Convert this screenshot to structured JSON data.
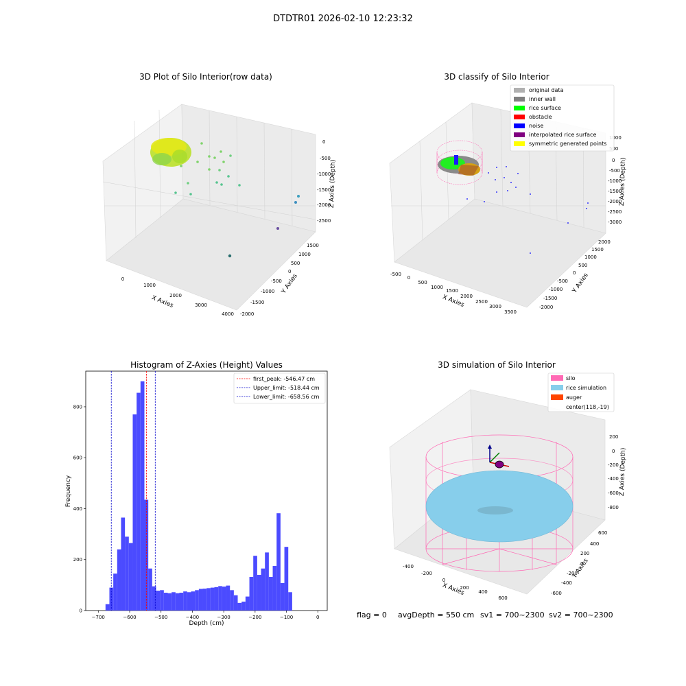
{
  "page": {
    "suptitle": "DTDTR01 2026-02-10 12:23:32"
  },
  "colors": {
    "pane_gray": "#f2f2f2",
    "pane_gray_dark": "#e6e6e6",
    "hist_bar": "#4b4bff",
    "first_peak_line": "#ff0000",
    "limit_line": "#0000cc",
    "silo": "#ff69b4",
    "rice_sim": "#87ceeb",
    "auger": "#ff4500"
  },
  "panel1": {
    "title": "3D Plot of Silo Interior(row data)",
    "x_label": "X Axies",
    "y_label": "Y Axies",
    "z_label": "Z Axies (Depth)",
    "x_ticks": [
      "0",
      "1000",
      "2000",
      "3000",
      "4000"
    ],
    "y_ticks": [
      "-2000",
      "-1500",
      "-1000",
      "-500",
      "0",
      "500",
      "1000",
      "1500"
    ],
    "z_ticks": [
      "0",
      "-500",
      "-1000",
      "-1500",
      "-2000",
      "-2500"
    ]
  },
  "panel2": {
    "title": "3D classify of Silo Interior",
    "x_label": "X Axies",
    "y_label": "Y Axies",
    "z_label": "Z Axies (Depth)",
    "x_ticks": [
      "-500",
      "0",
      "500",
      "1000",
      "1500",
      "2000",
      "2500",
      "3000",
      "3500"
    ],
    "y_ticks": [
      "-2000",
      "-1500",
      "-1000",
      "-500",
      "0",
      "500",
      "1000",
      "1500",
      "2000"
    ],
    "z_ticks": [
      "1000",
      "500",
      "0",
      "-500",
      "-1000",
      "-1500",
      "-2000",
      "-2500",
      "-3000"
    ],
    "legend": [
      {
        "label": "original data",
        "color": "#b0b0b0"
      },
      {
        "label": "inner wall",
        "color": "#808080"
      },
      {
        "label": "rice surface",
        "color": "#00ff00"
      },
      {
        "label": "obstacle",
        "color": "#ff0000"
      },
      {
        "label": "noise",
        "color": "#0000ff"
      },
      {
        "label": "interpolated rice surface",
        "color": "#800080"
      },
      {
        "label": "symmetric generated points",
        "color": "#ffff00"
      }
    ]
  },
  "panel3": {
    "title": "Histogram of Z-Axies (Height) Values",
    "legend": [
      {
        "label": "first_peak: -546.47 cm",
        "color": "#ff0000"
      },
      {
        "label": "Upper_limit: -518.44 cm",
        "color": "#0000cc"
      },
      {
        "label": "Lower_limit: -658.56 cm",
        "color": "#0000cc"
      }
    ]
  },
  "panel4": {
    "title": "3D simulation of Silo Interior",
    "x_label": "X Axies",
    "y_label": "Y Axies",
    "z_label": "Z Axies (Depth)",
    "x_ticks": [
      "-400",
      "-200",
      "0",
      "200",
      "400",
      "600"
    ],
    "y_ticks": [
      "-600",
      "-400",
      "-200",
      "0",
      "200",
      "400",
      "600"
    ],
    "z_ticks": [
      "200",
      "0",
      "-200",
      "-400",
      "-600",
      "-800"
    ],
    "legend": [
      {
        "label": "silo",
        "color": "#ff69b4",
        "swatch": true
      },
      {
        "label": "rice simulation",
        "color": "#87ceeb",
        "swatch": true
      },
      {
        "label": "auger",
        "color": "#ff4500",
        "swatch": true
      },
      {
        "label": "center(118,-19)",
        "color": "",
        "swatch": false
      }
    ]
  },
  "status": {
    "flag": "flag = 0",
    "avg_depth": "avgDepth = 550 cm",
    "sv1": "sv1 = 700~2300",
    "sv2": "sv2 = 700~2300"
  },
  "chart_data": {
    "type": "bar",
    "xlabel": "Depth (cm)",
    "ylabel": "Frequency",
    "xlim": [
      -740,
      30
    ],
    "ylim": [
      0,
      940
    ],
    "x_ticks": [
      -700,
      -600,
      -500,
      -400,
      -300,
      -200,
      -100,
      0
    ],
    "y_ticks": [
      0,
      200,
      400,
      600,
      800
    ],
    "bin_width": 12.4,
    "bin_start": -677,
    "values": [
      25,
      90,
      145,
      240,
      365,
      290,
      265,
      770,
      855,
      900,
      435,
      165,
      95,
      78,
      80,
      70,
      68,
      72,
      68,
      70,
      75,
      72,
      75,
      80,
      85,
      86,
      88,
      90,
      92,
      96,
      94,
      98,
      80,
      60,
      30,
      35,
      55,
      132,
      215,
      140,
      165,
      228,
      132,
      175,
      382,
      108,
      250,
      72
    ],
    "lines": [
      {
        "name": "first_peak",
        "x": -546.47
      },
      {
        "name": "Upper_limit",
        "x": -518.44
      },
      {
        "name": "Lower_limit",
        "x": -658.56
      }
    ]
  }
}
